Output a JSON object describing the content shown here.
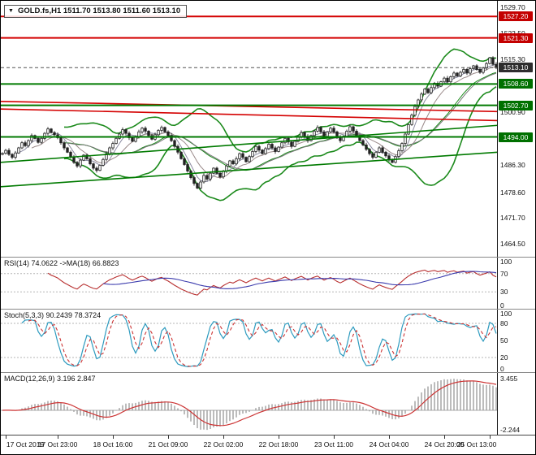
{
  "chart_data": {
    "type": "candlestick",
    "title": "GOLD.fs,H1",
    "header": {
      "symbol": "GOLD.fs,H1",
      "open": "1511.70",
      "high": "1513.80",
      "low": "1511.60",
      "close": "1513.10",
      "text": "GOLD.fs,H1 1511.70 1513.80 1511.60 1513.10"
    },
    "price_axis": {
      "min": 1461.0,
      "max": 1531.5,
      "labels": [
        {
          "p": 1529.7,
          "t": "1529.70"
        },
        {
          "p": 1522.5,
          "t": "1522.50"
        },
        {
          "p": 1515.3,
          "t": "1515.30"
        },
        {
          "p": 1500.9,
          "t": "1500.90"
        },
        {
          "p": 1486.3,
          "t": "1486.30"
        },
        {
          "p": 1478.6,
          "t": "1478.60"
        },
        {
          "p": 1471.7,
          "t": "1471.70"
        },
        {
          "p": 1464.5,
          "t": "1464.50"
        }
      ]
    },
    "badges": [
      {
        "p": 1527.2,
        "t": "1527.20",
        "c": "#c40000"
      },
      {
        "p": 1521.3,
        "t": "1521.30",
        "c": "#c40000"
      },
      {
        "p": 1513.1,
        "t": "1513.10",
        "c": "#2e2e2e"
      },
      {
        "p": 1508.6,
        "t": "1508.60",
        "c": "#007000"
      },
      {
        "p": 1502.7,
        "t": "1502.70",
        "c": "#007000"
      },
      {
        "p": 1494.0,
        "t": "1494.00",
        "c": "#007000"
      }
    ],
    "hlines": [
      {
        "p": 1527.2,
        "c": "#d40000",
        "w": 2
      },
      {
        "p": 1521.3,
        "c": "#d40000",
        "w": 2
      },
      {
        "p": 1508.6,
        "c": "#007a00",
        "w": 2
      },
      {
        "p": 1502.7,
        "c": "#007a00",
        "w": 2
      },
      {
        "p": 1494.0,
        "c": "#007a00",
        "w": 2
      }
    ],
    "current_line": {
      "p": 1513.1,
      "c": "#555555"
    },
    "trendlines": [
      {
        "p1": 1503.8,
        "p2": 1501.0,
        "c": "#d40000",
        "w": 1.6
      },
      {
        "p1": 1501.7,
        "p2": 1498.5,
        "c": "#d40000",
        "w": 1.6
      },
      {
        "p1": 1487.0,
        "p2": 1497.2,
        "c": "#007a00",
        "w": 1.6
      },
      {
        "p1": 1480.3,
        "p2": 1489.8,
        "c": "#007a00",
        "w": 1.6
      }
    ],
    "bollinger": {
      "period": 20,
      "dev": 2,
      "color": "#1b8a1b"
    },
    "mas": [
      {
        "period": 5,
        "color": "#8a8aa0"
      },
      {
        "period": 10,
        "color": "#9a8a8a"
      },
      {
        "period": 21,
        "color": "#777777"
      }
    ],
    "closes": [
      1489.5,
      1490.3,
      1489.2,
      1488.4,
      1489.6,
      1491.0,
      1492.4,
      1491.6,
      1493.0,
      1494.4,
      1493.6,
      1492.5,
      1493.6,
      1495.0,
      1496.2,
      1495.2,
      1494.6,
      1493.8,
      1492.4,
      1491.0,
      1489.8,
      1488.4,
      1487.0,
      1486.0,
      1487.6,
      1489.0,
      1488.0,
      1486.6,
      1485.4,
      1484.8,
      1486.2,
      1487.8,
      1489.4,
      1491.0,
      1492.2,
      1493.6,
      1494.8,
      1496.0,
      1495.0,
      1493.8,
      1492.8,
      1494.0,
      1495.4,
      1496.4,
      1495.6,
      1494.4,
      1493.4,
      1494.6,
      1495.8,
      1496.6,
      1495.4,
      1494.4,
      1493.0,
      1491.4,
      1489.8,
      1488.0,
      1486.4,
      1484.6,
      1482.8,
      1481.2,
      1479.9,
      1481.6,
      1483.4,
      1482.4,
      1484.0,
      1485.4,
      1484.0,
      1483.0,
      1484.6,
      1486.0,
      1487.4,
      1486.6,
      1488.0,
      1489.4,
      1488.4,
      1487.2,
      1488.6,
      1490.0,
      1491.4,
      1490.4,
      1489.4,
      1490.8,
      1492.0,
      1491.0,
      1490.0,
      1491.2,
      1492.4,
      1493.6,
      1492.6,
      1491.4,
      1492.8,
      1494.0,
      1495.2,
      1494.2,
      1493.0,
      1494.4,
      1495.6,
      1496.6,
      1495.4,
      1494.2,
      1495.4,
      1496.4,
      1495.4,
      1494.0,
      1493.0,
      1494.2,
      1495.6,
      1496.8,
      1495.6,
      1494.4,
      1493.0,
      1491.8,
      1490.6,
      1489.4,
      1488.4,
      1489.8,
      1491.0,
      1489.8,
      1488.8,
      1487.8,
      1487.0,
      1488.6,
      1490.2,
      1492.2,
      1494.8,
      1497.4,
      1500.0,
      1502.4,
      1504.2,
      1505.8,
      1507.2,
      1506.2,
      1507.6,
      1508.8,
      1508.0,
      1509.2,
      1510.2,
      1509.2,
      1510.6,
      1511.6,
      1510.8,
      1511.8,
      1512.6,
      1511.6,
      1512.8,
      1513.6,
      1512.6,
      1511.8,
      1513.0,
      1514.2,
      1515.8,
      1514.0,
      1513.1
    ],
    "indicators": {
      "rsi": {
        "label": "RSI(14) 74.0622  ->MA(18) 66.8823",
        "period": 14,
        "ma": 18,
        "levels": [
          70,
          30
        ],
        "axis": [
          {
            "v": 100,
            "t": "100"
          },
          {
            "v": 70,
            "t": "70"
          },
          {
            "v": 30,
            "t": "30"
          },
          {
            "v": 0,
            "t": "0"
          }
        ],
        "color": "#b83030",
        "ma_color": "#3b3bad"
      },
      "stoch": {
        "label": "Stoch(5,3,3) 90.2439 78.3724",
        "k": 5,
        "slowing": 3,
        "d": 3,
        "levels": [
          80,
          20
        ],
        "axis": [
          {
            "v": 100,
            "t": "100"
          },
          {
            "v": 80,
            "t": "80"
          },
          {
            "v": 50,
            "t": "50"
          },
          {
            "v": 20,
            "t": "20"
          },
          {
            "v": 0,
            "t": "0"
          }
        ],
        "k_color": "#2e9bbf",
        "d_color": "#cc3333"
      },
      "macd": {
        "label": "MACD(12,26,9) 3.196 2.847",
        "fast": 12,
        "slow": 26,
        "signal": 9,
        "axis_top": "3.455",
        "axis_bottom": "-2.244",
        "hist_color": "#909090",
        "signal_color": "#cc3333"
      }
    },
    "time_axis": [
      {
        "bar": 1,
        "t": "17 Oct 2019"
      },
      {
        "bar": 17,
        "t": "17 Oct 23:00"
      },
      {
        "bar": 34,
        "t": "18 Oct 16:00"
      },
      {
        "bar": 51,
        "t": "21 Oct 09:00"
      },
      {
        "bar": 68,
        "t": "22 Oct 02:00"
      },
      {
        "bar": 85,
        "t": "22 Oct 18:00"
      },
      {
        "bar": 102,
        "t": "23 Oct 11:00"
      },
      {
        "bar": 119,
        "t": "24 Oct 04:00"
      },
      {
        "bar": 136,
        "t": "24 Oct 20:00"
      },
      {
        "bar": 150,
        "t": "25 Oct 13:00"
      }
    ]
  }
}
